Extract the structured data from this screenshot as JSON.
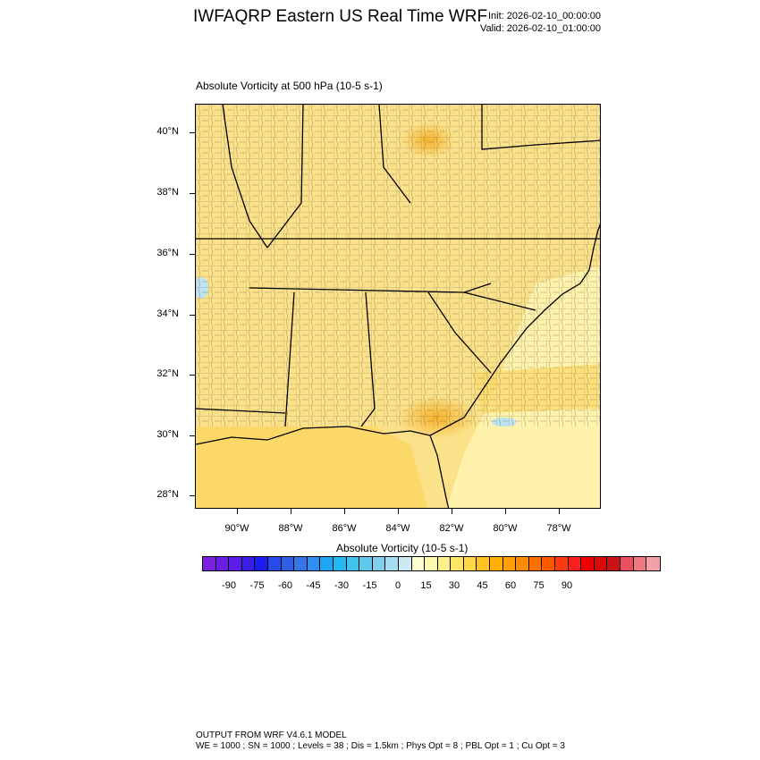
{
  "header": {
    "title": "IWFAQRP Eastern US Real Time WRF",
    "init": "Init: 2026-02-10_00:00:00",
    "valid": "Valid: 2026-02-10_01:00:00"
  },
  "field": {
    "title": "Absolute Vorticity at 500 hPa   (10-5 s-1)"
  },
  "map": {
    "lat_labels": [
      "40°N",
      "38°N",
      "36°N",
      "34°N",
      "32°N",
      "30°N",
      "28°N"
    ],
    "lon_labels": [
      "90°W",
      "88°W",
      "86°W",
      "84°W",
      "82°W",
      "80°W",
      "78°W"
    ]
  },
  "colorbar": {
    "title": "Absolute Vorticity  (10-5 s-1)",
    "colors": [
      "#7b1fe0",
      "#6a1fe6",
      "#5a1ee8",
      "#3a1ee8",
      "#1a1ef0",
      "#2a4ae8",
      "#2f5fe6",
      "#3575e8",
      "#2f8ef0",
      "#1fa6f2",
      "#23b8f0",
      "#3ec4ee",
      "#62c8ea",
      "#7fcfec",
      "#a5dcef",
      "#cdeaf4",
      "#ffffd0",
      "#fff9b0",
      "#fff08a",
      "#ffe566",
      "#ffd747",
      "#ffc21f",
      "#ffb000",
      "#ff9f00",
      "#ff8a00",
      "#ff7000",
      "#ff5a00",
      "#ff3a0f",
      "#ff1f1f",
      "#f00000",
      "#d80a0a",
      "#c81414",
      "#e85060",
      "#f07880",
      "#f4a0a8"
    ],
    "labels": [
      "-90",
      "-75",
      "-60",
      "-45",
      "-30",
      "-15",
      "0",
      "15",
      "30",
      "45",
      "60",
      "75",
      "90"
    ]
  },
  "footer": {
    "line1": "OUTPUT FROM WRF V4.6.1 MODEL",
    "line2": "WE = 1000 ; SN = 1000 ; Levels = 38 ; Dis = 1.5km ; Phys Opt = 8 ; PBL Opt = 1 ; Cu Opt = 3"
  }
}
